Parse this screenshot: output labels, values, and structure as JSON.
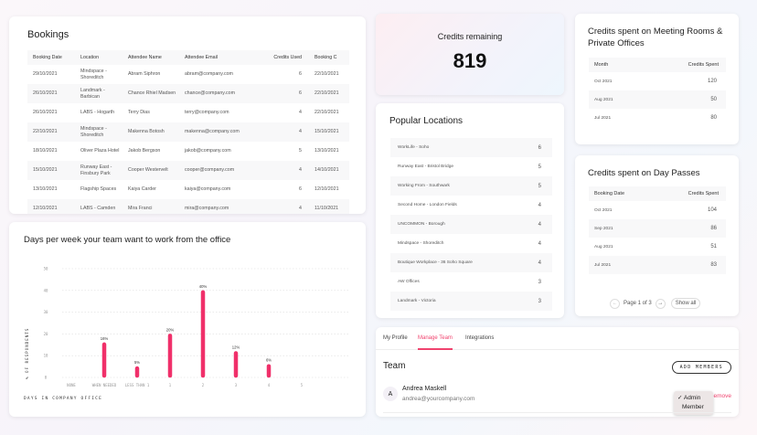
{
  "bookings": {
    "title": "Bookings",
    "columns": [
      "Booking Date",
      "Location",
      "Attendee Name",
      "Attendee Email",
      "Credits Used",
      "Booking C"
    ],
    "rows": [
      [
        "29/10/2021",
        "Mindspace - Shoreditch",
        "Abram Siphron",
        "abram@company.com",
        "6",
        "22/10/2021"
      ],
      [
        "26/10/2021",
        "Landmark - Barbican",
        "Chance Rhiel Madsen",
        "chance@company.com",
        "6",
        "22/10/2021"
      ],
      [
        "26/10/2021",
        "LABS - Hogarth",
        "Terry Dias",
        "terry@company.com",
        "4",
        "22/10/2021"
      ],
      [
        "22/10/2021",
        "Mindspace - Shoreditch",
        "Makenna Botosh",
        "makenna@company.com",
        "4",
        "15/10/2021"
      ],
      [
        "18/10/2021",
        "Oliver Plaza Hotel",
        "Jakob Bergson",
        "jakob@company.com",
        "5",
        "13/10/2021"
      ],
      [
        "15/10/2021",
        "Runway East - Finsbury Park",
        "Cooper Westervelt",
        "cooper@company.com",
        "4",
        "14/10/2021"
      ],
      [
        "13/10/2021",
        "Flagship Spaces",
        "Kaiya Carder",
        "kaiya@company.com",
        "6",
        "12/10/2021"
      ],
      [
        "12/10/2021",
        "LABS - Camden",
        "Mira Franci",
        "mira@company.com",
        "4",
        "11/10/2021"
      ]
    ]
  },
  "chart_data": {
    "type": "bar",
    "title": "Days per week your team want to work from the office",
    "xlabel": "DAYS IN COMPANY OFFICE",
    "ylabel": "% OF RESPONDENTS",
    "categories": [
      "NONE",
      "WHEN NEEDED",
      "LESS THAN 1",
      "1",
      "2",
      "3",
      "4",
      "5"
    ],
    "values": [
      0,
      16,
      5,
      20,
      40,
      12,
      6,
      0
    ],
    "data_labels": [
      "",
      "16%",
      "5%",
      "20%",
      "40%",
      "12%",
      "6%",
      ""
    ],
    "yticks": [
      0,
      10,
      20,
      30,
      40,
      50
    ],
    "ylim": [
      0,
      50
    ],
    "grid": true,
    "color": "#f0306a"
  },
  "credits_remaining": {
    "title": "Credits remaining",
    "value": "819"
  },
  "popular_locations": {
    "title": "Popular Locations",
    "items": [
      [
        "WorkLife - Soho",
        "6"
      ],
      [
        "Runway East - Bristol Bridge",
        "5"
      ],
      [
        "Working From - Southwark",
        "5"
      ],
      [
        "Second Home - London Fields",
        "4"
      ],
      [
        "UNCOMMON - Borough",
        "4"
      ],
      [
        "Mindspace - Shoreditch",
        "4"
      ],
      [
        "Boutique Workplace - 36 Soho Square",
        "4"
      ],
      [
        "AW Offices",
        "3"
      ],
      [
        "Landmark - Victoria",
        "3"
      ]
    ]
  },
  "meeting_rooms": {
    "title": "Credits spent on Meeting Rooms & Private Offices",
    "columns": [
      "Month",
      "Credits Spent"
    ],
    "rows": [
      [
        "Oct 2021",
        "120"
      ],
      [
        "Aug 2021",
        "50"
      ],
      [
        "Jul 2021",
        "80"
      ]
    ]
  },
  "day_passes": {
    "title": "Credits spent on Day Passes",
    "columns": [
      "Booking Date",
      "Credits Spent"
    ],
    "rows": [
      [
        "Oct 2021",
        "104"
      ],
      [
        "Sep 2021",
        "86"
      ],
      [
        "Aug 2021",
        "51"
      ],
      [
        "Jul 2021",
        "83"
      ]
    ],
    "pagination": {
      "label": "Page 1 of 3",
      "show_all": "Show all",
      "prev": "←",
      "next": "→"
    }
  },
  "team": {
    "tabs": [
      "My Profile",
      "Manage Team",
      "Integrations"
    ],
    "active_tab": "Manage Team",
    "title": "Team",
    "add_members": "ADD MEMBERS",
    "member": {
      "initial": "A",
      "name": "Andrea Maskell",
      "email": "andrea@yourcompany.com",
      "remove": "Remove"
    },
    "role_options": [
      "✓ Admin",
      "Member"
    ],
    "accent": "#f0436e"
  }
}
